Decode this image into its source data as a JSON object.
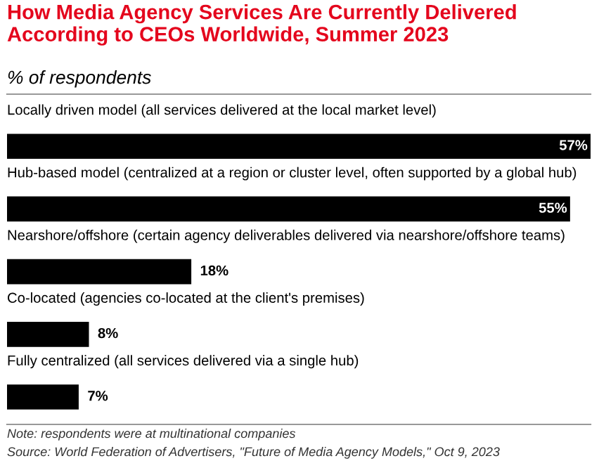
{
  "chart_data": {
    "type": "bar",
    "orientation": "horizontal",
    "title": "How Media Agency Services Are Currently Delivered According to CEOs Worldwide, Summer 2023",
    "subtitle": "% of respondents",
    "categories": [
      "Locally driven model (all services delivered at the local market level)",
      "Hub-based model (centralized at a region or cluster level, often supported by a global hub)",
      "Nearshore/offshore (certain agency deliverables delivered via nearshore/offshore teams)",
      "Co-located (agencies co-located at the client's premises)",
      "Fully centralized (all services delivered via a single hub)"
    ],
    "values": [
      57,
      55,
      18,
      8,
      7
    ],
    "value_labels": [
      "57%",
      "55%",
      "18%",
      "8%",
      "7%"
    ],
    "color": "#000000",
    "tick_labels": false,
    "annotations": [
      "Note: respondents were at multinational companies",
      "Source: World Federation of Advertisers, \"Future of Media Agency Models,\" Oct 9, 2023"
    ]
  }
}
